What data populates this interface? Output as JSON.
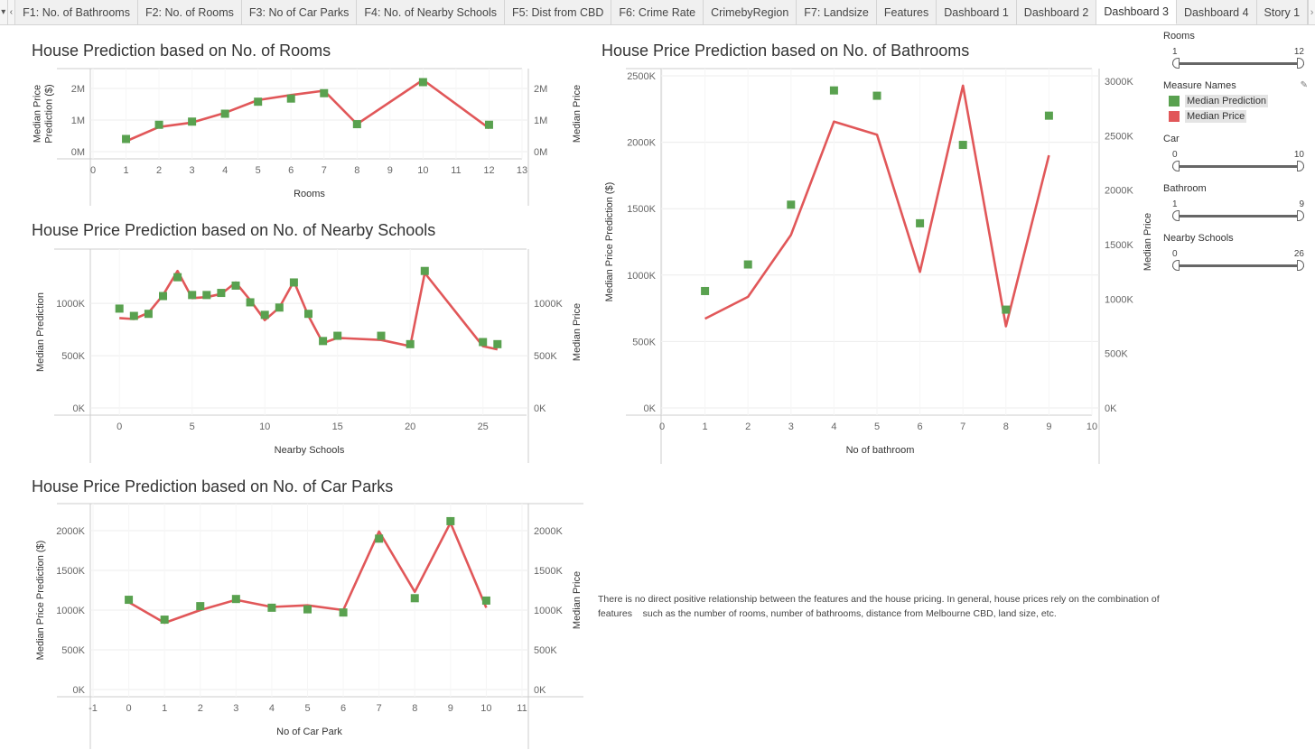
{
  "tabbar": {
    "nav_menu": "▾",
    "nav_prev": "‹",
    "nav_next": "›",
    "tabs": [
      {
        "label": "F1: No. of Bathrooms"
      },
      {
        "label": "F2: No. of Rooms"
      },
      {
        "label": "F3: No of Car Parks"
      },
      {
        "label": "F4: No. of Nearby Schools"
      },
      {
        "label": "F5: Dist from CBD"
      },
      {
        "label": "F6: Crime Rate"
      },
      {
        "label": "CrimebyRegion"
      },
      {
        "label": "F7: Landsize"
      },
      {
        "label": "Features"
      },
      {
        "label": "Dashboard 1"
      },
      {
        "label": "Dashboard 2"
      },
      {
        "label": "Dashboard 3",
        "active": true
      },
      {
        "label": "Dashboard 4"
      },
      {
        "label": "Story 1"
      }
    ]
  },
  "colors": {
    "prediction": "#59a14f",
    "price": "#e15759",
    "grid": "#ececec",
    "axis": "#cccccc"
  },
  "charts": {
    "rooms": {
      "title": "House Prediction based on No. of Rooms",
      "ylabel_left": "Median Price Prediction ($)",
      "ylabel_right": "Median Price",
      "xlabel": "Rooms",
      "x_ticks": [
        "0",
        "1",
        "2",
        "3",
        "4",
        "5",
        "6",
        "7",
        "8",
        "9",
        "10",
        "11",
        "12",
        "13"
      ],
      "y_ticks_left": [
        "0M",
        "1M",
        "2M"
      ],
      "y_ticks_right": [
        "0M",
        "1M",
        "2M"
      ],
      "chart_data": {
        "type": "line",
        "xlim": [
          0,
          13
        ],
        "ylim_left": [
          0,
          2400000
        ],
        "ylim_right": [
          0,
          2400000
        ],
        "x": [
          1,
          2,
          3,
          4,
          5,
          6,
          7,
          8,
          10,
          12
        ],
        "series": [
          {
            "name": "Median Prediction",
            "mark": "square",
            "values": [
              400000,
              850000,
              950000,
              1200000,
              1580000,
              1680000,
              1850000,
              870000,
              2200000,
              850000
            ]
          },
          {
            "name": "Median Price",
            "mark": "line",
            "values": [
              330000,
              780000,
              920000,
              1230000,
              1630000,
              1790000,
              1930000,
              870000,
              2270000,
              740000
            ]
          }
        ]
      }
    },
    "schools": {
      "title": "House Price Prediction based on No. of Nearby Schools",
      "ylabel_left": "Median Prediction",
      "ylabel_right": "Median Price",
      "xlabel": "Nearby Schools",
      "x_ticks": [
        "0",
        "5",
        "10",
        "15",
        "20",
        "25"
      ],
      "y_ticks_left": [
        "0K",
        "500K",
        "1000K"
      ],
      "y_ticks_right": [
        "0K",
        "500K",
        "1000K"
      ],
      "chart_data": {
        "type": "line",
        "xlim": [
          -2,
          28
        ],
        "ylim_left": [
          0,
          1450000
        ],
        "ylim_right": [
          0,
          1450000
        ],
        "x": [
          0,
          1,
          2,
          3,
          4,
          5,
          6,
          7,
          8,
          9,
          10,
          11,
          12,
          13,
          14,
          15,
          18,
          20,
          21,
          25,
          26
        ],
        "series": [
          {
            "name": "Median Prediction",
            "mark": "square",
            "values": [
              950000,
              880000,
              900000,
              1070000,
              1250000,
              1080000,
              1080000,
              1100000,
              1170000,
              1010000,
              890000,
              960000,
              1200000,
              900000,
              640000,
              690000,
              690000,
              610000,
              1310000,
              630000,
              610000
            ]
          },
          {
            "name": "Median Price",
            "mark": "line",
            "values": [
              860000,
              850000,
              910000,
              1080000,
              1310000,
              1050000,
              1060000,
              1090000,
              1200000,
              1030000,
              840000,
              960000,
              1210000,
              880000,
              620000,
              670000,
              650000,
              590000,
              1290000,
              590000,
              560000
            ]
          }
        ]
      }
    },
    "carparks": {
      "title": "House Price Prediction based on No. of Car Parks",
      "ylabel_left": "Median Price Prediction ($)",
      "ylabel_right": "Median Price",
      "xlabel": "No of Car Park",
      "x_ticks": [
        "-1",
        "0",
        "1",
        "2",
        "3",
        "4",
        "5",
        "6",
        "7",
        "8",
        "9",
        "10",
        "11"
      ],
      "y_ticks_left": [
        "0K",
        "500K",
        "1000K",
        "1500K",
        "2000K"
      ],
      "y_ticks_right": [
        "0K",
        "500K",
        "1000K",
        "1500K",
        "2000K"
      ],
      "chart_data": {
        "type": "line",
        "xlim": [
          -1,
          11
        ],
        "ylim_left": [
          0,
          2250000
        ],
        "ylim_right": [
          0,
          2250000
        ],
        "x": [
          0,
          1,
          2,
          3,
          4,
          5,
          6,
          7,
          8,
          9,
          10
        ],
        "series": [
          {
            "name": "Median Prediction",
            "mark": "square",
            "values": [
              1130000,
              880000,
              1050000,
              1140000,
              1030000,
              1010000,
              970000,
              1900000,
              1150000,
              2120000,
              1120000
            ]
          },
          {
            "name": "Median Price",
            "mark": "line",
            "values": [
              1100000,
              840000,
              1000000,
              1130000,
              1040000,
              1060000,
              1000000,
              1990000,
              1230000,
              2100000,
              1030000
            ]
          }
        ]
      }
    },
    "bathrooms": {
      "title": "House Price Prediction based on No. of Bathrooms",
      "ylabel_left": "Median Price Prediction ($)",
      "ylabel_right": "Median Price",
      "xlabel": "No of bathroom",
      "x_ticks": [
        "0",
        "1",
        "2",
        "3",
        "4",
        "5",
        "6",
        "7",
        "8",
        "9",
        "10"
      ],
      "y_ticks_left": [
        "0K",
        "500K",
        "1000K",
        "1500K",
        "2000K",
        "2500K"
      ],
      "y_ticks_right": [
        "0K",
        "500K",
        "1000K",
        "1500K",
        "2000K",
        "2500K",
        "3000K"
      ],
      "chart_data": {
        "type": "line",
        "xlim": [
          0,
          10
        ],
        "ylim_left": [
          0,
          2500000
        ],
        "ylim_right": [
          0,
          3050000
        ],
        "x": [
          1,
          2,
          3,
          4,
          5,
          6,
          7,
          8,
          9
        ],
        "series": [
          {
            "name": "Median Prediction",
            "mark": "square",
            "axis": "left",
            "values": [
              880000,
              1080000,
              1530000,
              2390000,
              2350000,
              1390000,
              1980000,
              740000,
              2200000
            ]
          },
          {
            "name": "Median Price",
            "mark": "line",
            "axis": "right",
            "values": [
              820000,
              1020000,
              1590000,
              2630000,
              2510000,
              1250000,
              2960000,
              750000,
              2320000
            ]
          }
        ]
      }
    }
  },
  "sidebar": {
    "filters": [
      {
        "label": "Rooms",
        "min": "1",
        "max": "12"
      },
      {
        "label": "Car",
        "min": "0",
        "max": "10"
      },
      {
        "label": "Bathroom",
        "min": "1",
        "max": "9"
      },
      {
        "label": "Nearby Schools",
        "min": "0",
        "max": "26"
      }
    ],
    "legend": {
      "title": "Measure Names",
      "icon": "✎",
      "items": [
        {
          "label": "Median Prediction",
          "color": "#59a14f"
        },
        {
          "label": "Median Price",
          "color": "#e15759"
        }
      ]
    }
  },
  "note": "There is no direct positive relationship between the features and the house pricing. In general, house prices rely on the combination of features    such as the number of rooms, number of bathrooms, distance from Melbourne CBD, land size, etc."
}
